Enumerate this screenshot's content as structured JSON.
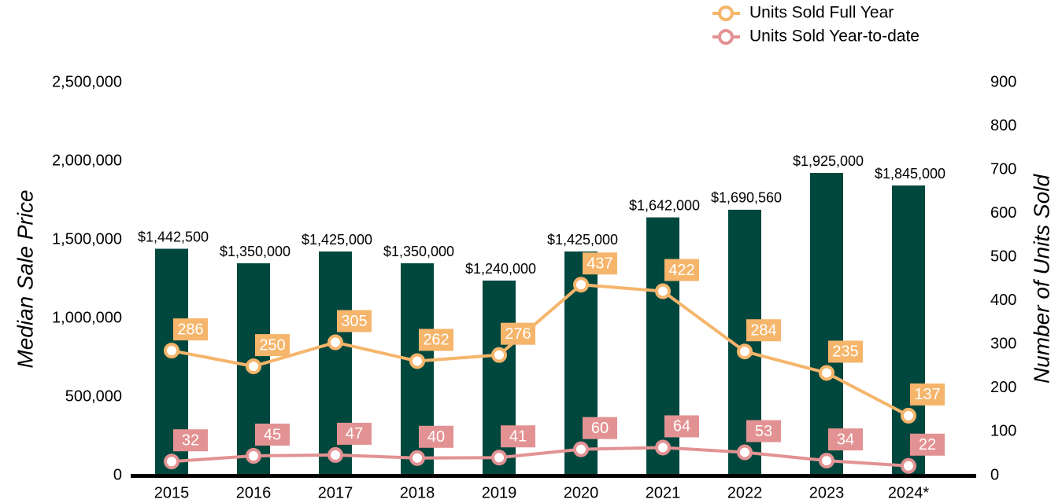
{
  "chart_data": {
    "type": "bar",
    "categories": [
      "2015",
      "2016",
      "2017",
      "2018",
      "2019",
      "2020",
      "2021",
      "2022",
      "2023",
      "2024*"
    ],
    "values": [
      1442500,
      1350000,
      1425000,
      1350000,
      1240000,
      1425000,
      1642000,
      1690560,
      1925000,
      1845000
    ],
    "value_labels": [
      "$1,442,500",
      "$1,350,000",
      "$1,425,000",
      "$1,350,000",
      "$1,240,000",
      "$1,425,000",
      "$1,642,000",
      "$1,690,560",
      "$1,925,000",
      "$1,845,000"
    ],
    "color": "#00473e",
    "series": [
      {
        "name": "Units Sold Full Year",
        "type": "line",
        "axis": "y2",
        "color": "#f5b56b",
        "values": [
          286,
          250,
          305,
          262,
          276,
          437,
          422,
          284,
          235,
          137
        ]
      },
      {
        "name": "Units Sold Year-to-date",
        "type": "line",
        "axis": "y2",
        "color": "#e39293",
        "values": [
          32,
          45,
          47,
          40,
          41,
          60,
          64,
          53,
          34,
          22
        ]
      }
    ],
    "ylabel": "Median Sale Price",
    "y2label": "Number of Units Sold",
    "ylim": [
      0,
      2500000
    ],
    "yticks": [
      0,
      {
        "value": 500000,
        "label": "500,000"
      },
      {
        "value": 1000000,
        "label": "1,000,000"
      },
      {
        "value": 1500000,
        "label": "1,500,000"
      },
      {
        "value": 2000000,
        "label": "2,000,000"
      },
      {
        "value": 2500000,
        "label": "2,500,000"
      }
    ],
    "y2lim": [
      0,
      900
    ],
    "y2ticks": [
      0,
      100,
      200,
      300,
      400,
      500,
      600,
      700,
      800,
      900
    ],
    "legend": "top-right"
  }
}
